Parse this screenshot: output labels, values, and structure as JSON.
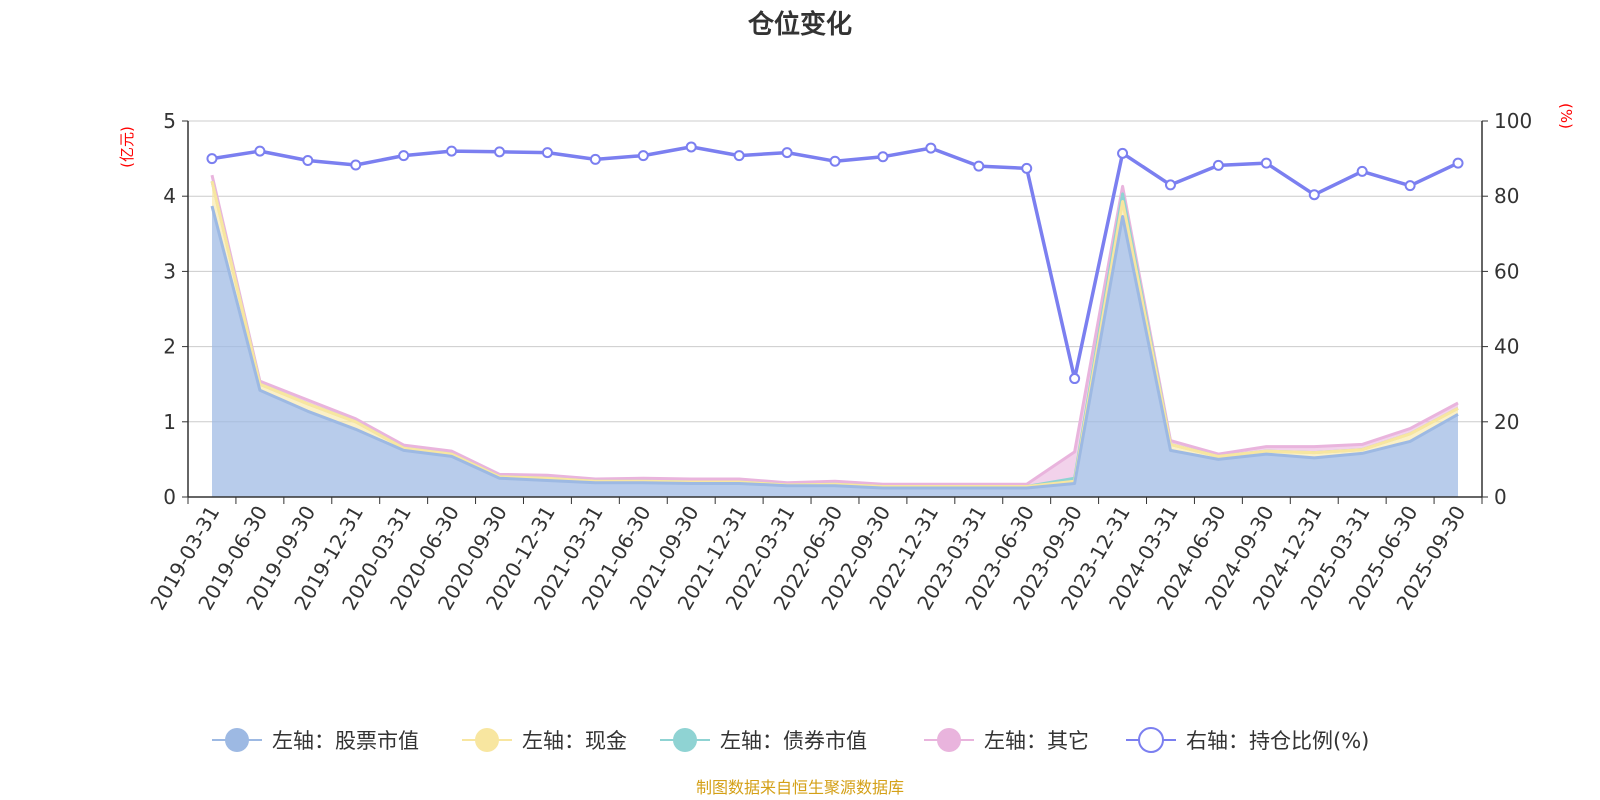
{
  "title": "仓位变化",
  "source_note": "制图数据来自恒生聚源数据库",
  "colors": {
    "stock": "#9db9e3",
    "cash": "#f8e6a0",
    "bond": "#8fd3d3",
    "other": "#e9b4dd",
    "ratio": "#7b7ff0",
    "grid": "#cccccc",
    "axis": "#333333",
    "unit": "#ff0000",
    "source": "#d4a017"
  },
  "chart_data": {
    "type": "area",
    "title": "仓位变化",
    "left_axis": {
      "unit_label": "(亿元)",
      "ylim": [
        0,
        5
      ],
      "ticks": [
        "0",
        "1",
        "2",
        "3",
        "4",
        "5"
      ]
    },
    "right_axis": {
      "unit_label": "(%)",
      "ylim": [
        0,
        100
      ],
      "ticks": [
        "0",
        "20",
        "40",
        "60",
        "80",
        "100"
      ]
    },
    "categories": [
      "2019-03-31",
      "2019-06-30",
      "2019-09-30",
      "2019-12-31",
      "2020-03-31",
      "2020-06-30",
      "2020-09-30",
      "2020-12-31",
      "2021-03-31",
      "2021-06-30",
      "2021-09-30",
      "2021-12-31",
      "2022-03-31",
      "2022-06-30",
      "2022-09-30",
      "2022-12-31",
      "2023-03-31",
      "2023-06-30",
      "2023-09-30",
      "2023-12-31",
      "2024-03-31",
      "2024-06-30",
      "2024-09-30",
      "2024-12-31",
      "2025-03-31",
      "2025-06-30",
      "2025-09-30"
    ],
    "series": [
      {
        "name": "左轴：股票市值",
        "axis": "left",
        "stacked": true,
        "color_key": "stock",
        "values": [
          3.87,
          1.42,
          1.14,
          0.9,
          0.62,
          0.54,
          0.25,
          0.22,
          0.19,
          0.19,
          0.18,
          0.18,
          0.15,
          0.15,
          0.12,
          0.12,
          0.12,
          0.12,
          0.18,
          3.73,
          0.62,
          0.5,
          0.57,
          0.52,
          0.58,
          0.74,
          1.1
        ]
      },
      {
        "name": "左轴：现金",
        "axis": "left",
        "stacked": true,
        "color_key": "cash",
        "values": [
          0.33,
          0.08,
          0.1,
          0.1,
          0.03,
          0.03,
          0.02,
          0.03,
          0.02,
          0.02,
          0.02,
          0.02,
          0.01,
          0.02,
          0.02,
          0.02,
          0.02,
          0.02,
          0.03,
          0.2,
          0.08,
          0.04,
          0.04,
          0.07,
          0.05,
          0.1,
          0.08
        ]
      },
      {
        "name": "左轴：债券市值",
        "axis": "left",
        "stacked": true,
        "color_key": "bond",
        "values": [
          0,
          0,
          0,
          0,
          0,
          0,
          0,
          0,
          0,
          0,
          0,
          0,
          0,
          0,
          0,
          0,
          0,
          0,
          0.04,
          0.1,
          0,
          0,
          0,
          0,
          0,
          0,
          0
        ]
      },
      {
        "name": "左轴：其它",
        "axis": "left",
        "stacked": true,
        "color_key": "other",
        "values": [
          0.08,
          0.04,
          0.05,
          0.04,
          0.04,
          0.04,
          0.03,
          0.04,
          0.03,
          0.04,
          0.04,
          0.04,
          0.03,
          0.04,
          0.03,
          0.03,
          0.03,
          0.03,
          0.35,
          0.1,
          0.05,
          0.03,
          0.06,
          0.08,
          0.07,
          0.07,
          0.07
        ]
      },
      {
        "name": "右轴：持仓比例(%)",
        "axis": "right",
        "type": "line",
        "color_key": "ratio",
        "values": [
          90,
          92,
          89.5,
          88.3,
          90.8,
          92,
          91.8,
          91.6,
          89.8,
          90.8,
          93.1,
          90.8,
          91.6,
          89.3,
          90.5,
          92.8,
          88,
          87.4,
          31.5,
          91.4,
          83,
          88.2,
          88.8,
          80.4,
          86.6,
          82.8,
          88.8
        ]
      }
    ]
  }
}
